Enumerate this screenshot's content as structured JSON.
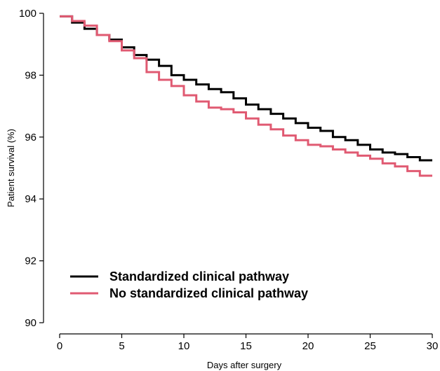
{
  "chart_data": {
    "type": "line",
    "subtype": "step",
    "xlabel": "Days after surgery",
    "ylabel": "Patient survival (%)",
    "xlim": [
      0,
      30
    ],
    "ylim": [
      90,
      100
    ],
    "xticks": [
      0,
      5,
      10,
      15,
      20,
      25,
      30
    ],
    "yticks": [
      90,
      92,
      94,
      96,
      98,
      100
    ],
    "grid": false,
    "legend_position": "bottom-left",
    "series": [
      {
        "name": "Standardized clinical pathway",
        "color": "#000000",
        "x": [
          0,
          1,
          2,
          3,
          4,
          5,
          6,
          7,
          8,
          9,
          10,
          11,
          12,
          13,
          14,
          15,
          16,
          17,
          18,
          19,
          20,
          21,
          22,
          23,
          24,
          25,
          26,
          27,
          28,
          29,
          30
        ],
        "y": [
          99.9,
          99.7,
          99.5,
          99.3,
          99.15,
          98.9,
          98.65,
          98.5,
          98.3,
          98.0,
          97.85,
          97.7,
          97.55,
          97.45,
          97.25,
          97.05,
          96.9,
          96.75,
          96.6,
          96.45,
          96.3,
          96.2,
          96.0,
          95.9,
          95.75,
          95.6,
          95.5,
          95.45,
          95.35,
          95.25,
          95.25
        ]
      },
      {
        "name": "No standardized clinical pathway",
        "color": "#e05a72",
        "x": [
          0,
          1,
          2,
          3,
          4,
          5,
          6,
          7,
          8,
          9,
          10,
          11,
          12,
          13,
          14,
          15,
          16,
          17,
          18,
          19,
          20,
          21,
          22,
          23,
          24,
          25,
          26,
          27,
          28,
          29,
          30
        ],
        "y": [
          99.9,
          99.75,
          99.6,
          99.3,
          99.1,
          98.8,
          98.55,
          98.1,
          97.85,
          97.65,
          97.35,
          97.15,
          96.95,
          96.9,
          96.8,
          96.6,
          96.4,
          96.25,
          96.05,
          95.9,
          95.75,
          95.7,
          95.6,
          95.5,
          95.4,
          95.3,
          95.15,
          95.05,
          94.9,
          94.75,
          94.75
        ]
      }
    ]
  }
}
